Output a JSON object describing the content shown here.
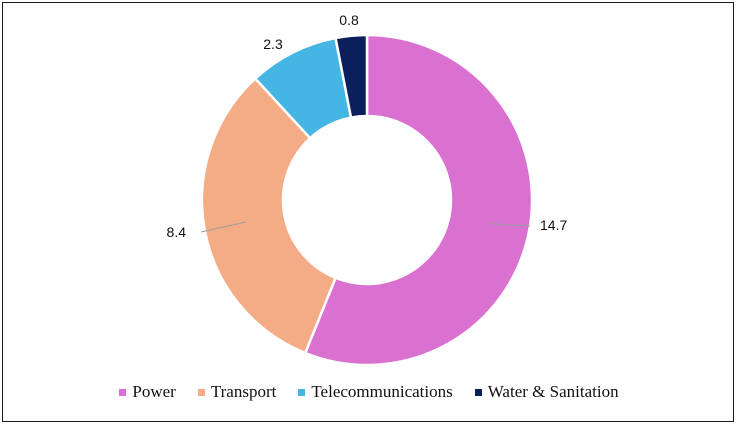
{
  "chart_data": {
    "type": "pie",
    "variant": "donut",
    "title": "",
    "categories": [
      "Power",
      "Transport",
      "Telecommunications",
      "Water & Sanitation"
    ],
    "values": [
      14.7,
      8.4,
      2.3,
      0.8
    ],
    "colors": [
      "#DA70D0",
      "#F4AC87",
      "#45B5E3",
      "#0A1F5C"
    ],
    "data_labels": [
      "14.7",
      "8.4",
      "2.3",
      "0.8"
    ],
    "legend": {
      "position": "bottom"
    }
  }
}
